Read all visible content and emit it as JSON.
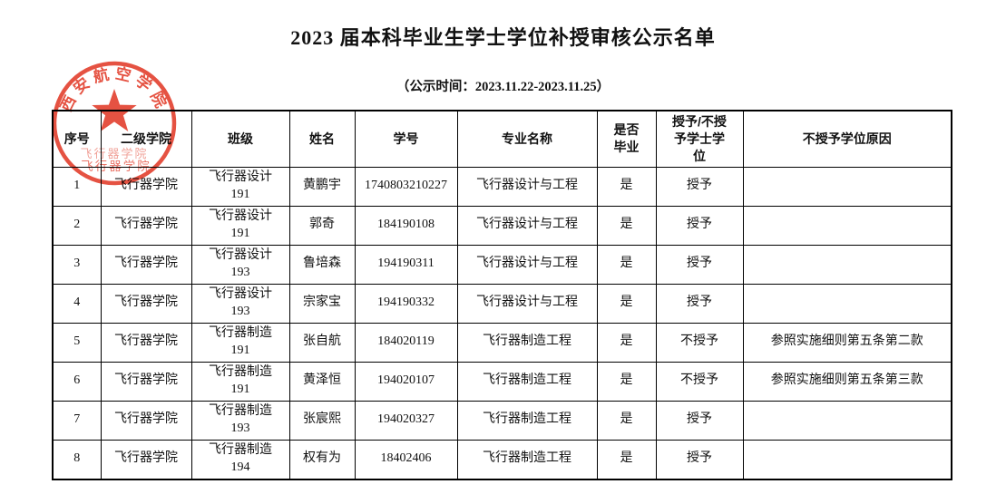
{
  "page": {
    "title": "2023 届本科毕业生学士学位补授审核公示名单",
    "subtitle": "（公示时间：2023.11.22-2023.11.25）"
  },
  "seal": {
    "arc_text": "西安航空学院",
    "bottom_text": "飞行器学院",
    "color": "#e23b28"
  },
  "table": {
    "headers": [
      "序号",
      "二级学院",
      "班级",
      "姓名",
      "学号",
      "专业名称",
      "是否毕业",
      "授予/不授予学士学位",
      "不授予学位原因"
    ],
    "column_keys": [
      "index",
      "college",
      "class",
      "name",
      "student-id",
      "major",
      "graduated",
      "degree-decision",
      "reason"
    ],
    "rows": [
      [
        "1",
        "飞行器学院",
        "飞行器设计191",
        "黄鹏宇",
        "1740803210227",
        "飞行器设计与工程",
        "是",
        "授予",
        ""
      ],
      [
        "2",
        "飞行器学院",
        "飞行器设计191",
        "郭奇",
        "184190108",
        "飞行器设计与工程",
        "是",
        "授予",
        ""
      ],
      [
        "3",
        "飞行器学院",
        "飞行器设计193",
        "鲁培森",
        "194190311",
        "飞行器设计与工程",
        "是",
        "授予",
        ""
      ],
      [
        "4",
        "飞行器学院",
        "飞行器设计193",
        "宗家宝",
        "194190332",
        "飞行器设计与工程",
        "是",
        "授予",
        ""
      ],
      [
        "5",
        "飞行器学院",
        "飞行器制造191",
        "张自航",
        "184020119",
        "飞行器制造工程",
        "是",
        "不授予",
        "参照实施细则第五条第二款"
      ],
      [
        "6",
        "飞行器学院",
        "飞行器制造191",
        "黄泽恒",
        "194020107",
        "飞行器制造工程",
        "是",
        "不授予",
        "参照实施细则第五条第三款"
      ],
      [
        "7",
        "飞行器学院",
        "飞行器制造193",
        "张宸熙",
        "194020327",
        "飞行器制造工程",
        "是",
        "授予",
        ""
      ],
      [
        "8",
        "飞行器学院",
        "飞行器制造194",
        "权有为",
        "18402406",
        "飞行器制造工程",
        "是",
        "授予",
        ""
      ]
    ]
  }
}
